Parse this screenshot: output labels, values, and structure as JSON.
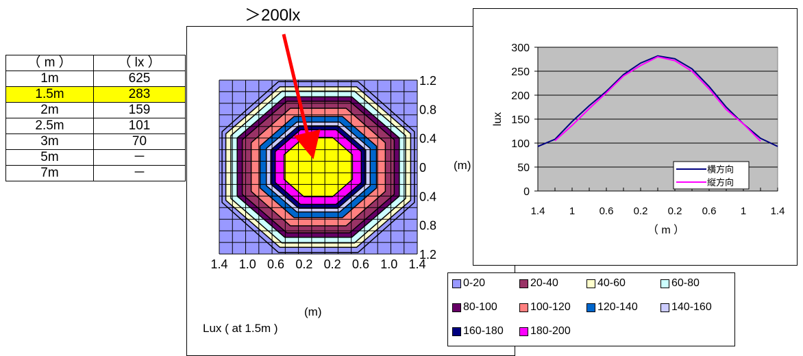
{
  "table": {
    "header": [
      "（ m ）",
      "（ lx ）"
    ],
    "rows": [
      {
        "distance": "1m",
        "lux": "625",
        "highlight": false
      },
      {
        "distance": "1.5m",
        "lux": "283",
        "highlight": true
      },
      {
        "distance": "2m",
        "lux": "159",
        "highlight": false
      },
      {
        "distance": "2.5m",
        "lux": "101",
        "highlight": false
      },
      {
        "distance": "3m",
        "lux": "70",
        "highlight": false
      },
      {
        "distance": "5m",
        "lux": "－",
        "highlight": false
      },
      {
        "distance": "7m",
        "lux": "－",
        "highlight": false
      }
    ]
  },
  "annotation": {
    "text": "＞200lx",
    "arrow_color": "#ff0000"
  },
  "chart_data": [
    {
      "type": "heatmap",
      "title": "Lux ( at 1.5m )",
      "xlabel": "(m)",
      "ylabel": "(m)",
      "x_ticks": [
        "1.4",
        "1.0",
        "0.6",
        "0.2",
        "0.2",
        "0.6",
        "1.0",
        "1.4"
      ],
      "y_ticks": [
        "1.2",
        "0.8",
        "0.4",
        "0",
        "0.4",
        "0.8",
        "1.2"
      ],
      "levels": [
        {
          "label": "0-20",
          "color": "#9999ff"
        },
        {
          "label": "20-40",
          "color": "#993366"
        },
        {
          "label": "40-60",
          "color": "#ffffcc"
        },
        {
          "label": "60-80",
          "color": "#ccffff"
        },
        {
          "label": "80-100",
          "color": "#660066"
        },
        {
          "label": "100-120",
          "color": "#ff8080"
        },
        {
          "label": "120-140",
          "color": "#0066cc"
        },
        {
          "label": "140-160",
          "color": "#ccccff"
        },
        {
          "label": "160-180",
          "color": "#000080"
        },
        {
          "label": "180-200",
          "color": "#ff00ff"
        },
        {
          "label": "＞200lx",
          "color": "#ffff00"
        }
      ]
    },
    {
      "type": "line",
      "xlabel": "（ m ）",
      "ylabel": "lux",
      "ylim": [
        0,
        300
      ],
      "yticks": [
        0,
        50,
        100,
        150,
        200,
        250,
        300
      ],
      "x_tick_labels": [
        "1.4",
        "1",
        "0.6",
        "0.2",
        "0.2",
        "0.6",
        "1",
        "1.4"
      ],
      "x": [
        -1.4,
        -1.2,
        -1.0,
        -0.8,
        -0.6,
        -0.4,
        -0.2,
        0.0,
        0.2,
        0.4,
        0.6,
        0.8,
        1.0,
        1.2,
        1.4
      ],
      "series": [
        {
          "name": "横方向",
          "color": "#000080",
          "values": [
            93,
            108,
            145,
            178,
            208,
            243,
            267,
            282,
            276,
            255,
            218,
            175,
            140,
            110,
            93
          ]
        },
        {
          "name": "縦方向",
          "color": "#ff00ff",
          "values": [
            null,
            105,
            137,
            172,
            205,
            240,
            262,
            280,
            272,
            250,
            213,
            170,
            140,
            104,
            null
          ]
        }
      ],
      "plot_background": "#c0c0c0",
      "grid": true,
      "legend": "bottom-right"
    }
  ]
}
